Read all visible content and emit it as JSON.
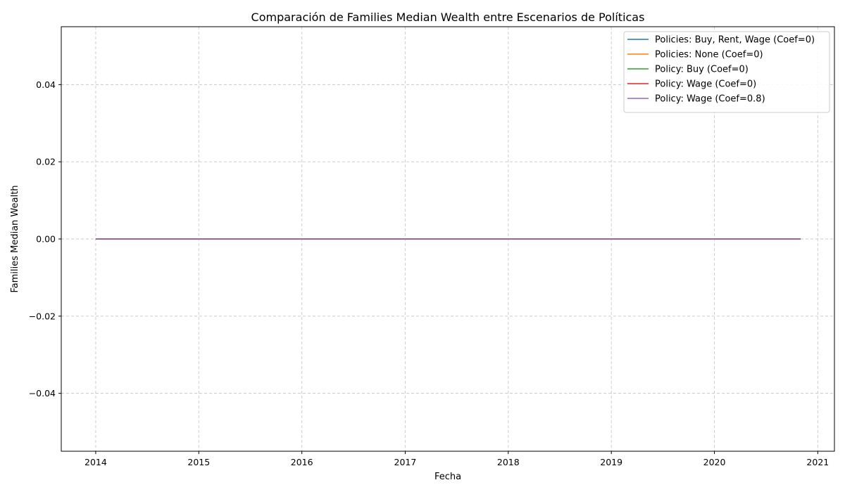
{
  "chart_data": {
    "type": "line",
    "title": "Comparación de Families Median Wealth entre Escenarios de Políticas",
    "xlabel": "Fecha",
    "ylabel": "Families Median Wealth",
    "x_ticks": [
      "2014",
      "2015",
      "2016",
      "2017",
      "2018",
      "2019",
      "2020",
      "2021"
    ],
    "y_ticks": [
      "0.04",
      "0.02",
      "0.00",
      "−0.02",
      "−0.04"
    ],
    "y_tick_values": [
      0.04,
      0.02,
      0.0,
      -0.02,
      -0.04
    ],
    "xlim": [
      "2013-09-01",
      "2021-03-01"
    ],
    "ylim": [
      -0.055,
      0.055
    ],
    "grid": true,
    "legend_position": "top-right",
    "x": [
      "2014-01-01",
      "2020-11-01"
    ],
    "series": [
      {
        "name": "Policies: Buy, Rent, Wage (Coef=0)",
        "color": "#1f77b4",
        "values": [
          0,
          0
        ]
      },
      {
        "name": "Policies: None (Coef=0)",
        "color": "#ff7f0e",
        "values": [
          0,
          0
        ]
      },
      {
        "name": "Policy: Buy (Coef=0)",
        "color": "#2ca02c",
        "values": [
          0,
          0
        ]
      },
      {
        "name": "Policy: Wage (Coef=0)",
        "color": "#d62728",
        "values": [
          0,
          0
        ]
      },
      {
        "name": "Policy: Wage (Coef=0.8)",
        "color": "#9467bd",
        "values": [
          0,
          0
        ]
      }
    ]
  }
}
